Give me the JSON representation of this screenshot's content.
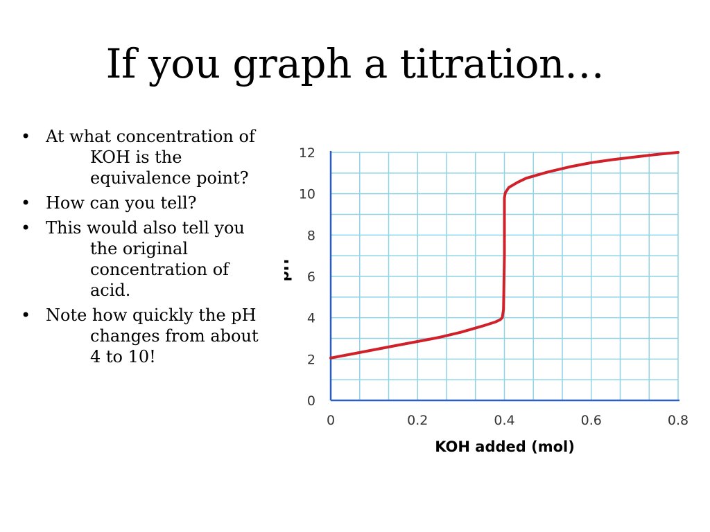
{
  "slide": {
    "title": "If you graph a titration…",
    "bullets": [
      "At what concentration of KOH is the equivalence point?",
      "How can you tell?",
      "This would also tell you the original concentration of acid.",
      "Note how quickly the pH changes from about 4 to 10!"
    ]
  },
  "chart_data": {
    "type": "line",
    "title": "",
    "xlabel": "KOH added (mol)",
    "ylabel": "pH",
    "xlim": [
      0,
      0.8
    ],
    "ylim": [
      0,
      12
    ],
    "xticks": [
      "0",
      "0.2",
      "0.4",
      "0.6",
      "0.8"
    ],
    "yticks": [
      "0",
      "2",
      "4",
      "6",
      "8",
      "10",
      "12"
    ],
    "grid": true,
    "legend": "none",
    "series": [
      {
        "x": [
          0,
          0.05,
          0.1,
          0.15,
          0.2,
          0.25,
          0.3,
          0.35,
          0.38,
          0.39,
          0.395,
          0.398,
          0.4,
          0.4,
          0.402,
          0.41,
          0.43,
          0.45,
          0.5,
          0.55,
          0.6,
          0.65,
          0.7,
          0.75,
          0.8
        ],
        "y": [
          2.05,
          2.25,
          2.45,
          2.65,
          2.85,
          3.05,
          3.3,
          3.6,
          3.8,
          3.9,
          4.0,
          4.4,
          7.0,
          9.8,
          10.05,
          10.3,
          10.55,
          10.75,
          11.05,
          11.3,
          11.5,
          11.65,
          11.78,
          11.9,
          12.0
        ]
      }
    ],
    "colors": {
      "curve": "#d0202a",
      "grid": "#8fd4e6",
      "axis": "#2a5fbf",
      "text": "#333333"
    }
  }
}
